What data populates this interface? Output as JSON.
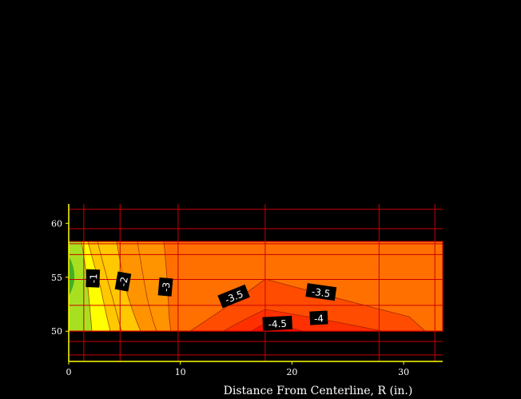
{
  "chart_data": {
    "type": "heatmap",
    "subtype": "contour",
    "title": "",
    "xlabel": "Distance From Centerline, R (in.)",
    "ylabel": "",
    "xlim": [
      0,
      33.5
    ],
    "ylim": [
      47.2,
      61.8
    ],
    "x_ticks": [
      0,
      10,
      20,
      30
    ],
    "y_ticks": [
      50,
      55,
      60
    ],
    "grid": true,
    "grid_color": "#cc0000",
    "background": "#000000",
    "field_extent": {
      "x": [
        0,
        33.5
      ],
      "y": [
        50,
        58
      ]
    },
    "field_base_color": "#ff7000",
    "contour_bands": [
      {
        "range": "> -1",
        "color": "#44b020"
      },
      {
        "range": "-1 to -1.5",
        "color": "#a8e020"
      },
      {
        "range": "-1.5 to -2",
        "color": "#ffff00"
      },
      {
        "range": "-2 to -2.5",
        "color": "#ffc800"
      },
      {
        "range": "-2.5 to -3",
        "color": "#ff9400"
      },
      {
        "range": "-3 to -3.5",
        "color": "#ff7000"
      },
      {
        "range": "-3.5 to -4",
        "color": "#ff4c00"
      },
      {
        "range": "-4 to -4.5",
        "color": "#ff3000"
      },
      {
        "range": "< -4.5",
        "color": "#ff1000"
      }
    ],
    "contour_labels": [
      {
        "text": "-1",
        "x": 2.2,
        "y": 54.9,
        "angle": -88
      },
      {
        "text": "-2",
        "x": 4.9,
        "y": 54.6,
        "angle": -80
      },
      {
        "text": "-3",
        "x": 8.7,
        "y": 54.1,
        "angle": -85
      },
      {
        "text": "-3.5",
        "x": 14.8,
        "y": 53.2,
        "angle": -22
      },
      {
        "text": "-3.5",
        "x": 22.6,
        "y": 53.6,
        "angle": 8
      },
      {
        "text": "-4.5",
        "x": 18.7,
        "y": 50.7,
        "angle": -3
      },
      {
        "text": "-4",
        "x": 22.4,
        "y": 51.2,
        "angle": -3
      }
    ]
  }
}
